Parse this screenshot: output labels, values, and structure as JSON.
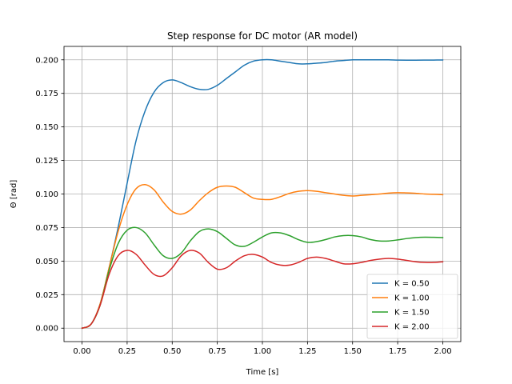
{
  "chart_data": {
    "type": "line",
    "title": "Step response for DC motor (AR model)",
    "xlabel": "Time [s]",
    "ylabel": "Θ [rad]",
    "xlim": [
      -0.1,
      2.1
    ],
    "ylim": [
      -0.01,
      0.21
    ],
    "xticks": [
      0.0,
      0.25,
      0.5,
      0.75,
      1.0,
      1.25,
      1.5,
      1.75,
      2.0
    ],
    "xtick_labels": [
      "0.00",
      "0.25",
      "0.50",
      "0.75",
      "1.00",
      "1.25",
      "1.50",
      "1.75",
      "2.00"
    ],
    "yticks": [
      0.0,
      0.025,
      0.05,
      0.075,
      0.1,
      0.125,
      0.15,
      0.175,
      0.2
    ],
    "ytick_labels": [
      "0.000",
      "0.025",
      "0.050",
      "0.075",
      "0.100",
      "0.125",
      "0.150",
      "0.175",
      "0.200"
    ],
    "grid": true,
    "legend_position": "lower-right",
    "series": [
      {
        "name": "K = 0.50",
        "color": "#1f77b4",
        "x": [
          0,
          0.05,
          0.1,
          0.15,
          0.2,
          0.25,
          0.3,
          0.35,
          0.4,
          0.45,
          0.5,
          0.55,
          0.6,
          0.65,
          0.7,
          0.75,
          0.8,
          0.85,
          0.9,
          0.95,
          1.0,
          1.05,
          1.1,
          1.15,
          1.2,
          1.25,
          1.3,
          1.35,
          1.4,
          1.45,
          1.5,
          1.55,
          1.6,
          1.65,
          1.7,
          1.75,
          1.8,
          1.85,
          1.9,
          1.95,
          2.0
        ],
        "y": [
          0,
          0.003,
          0.018,
          0.045,
          0.075,
          0.108,
          0.14,
          0.162,
          0.176,
          0.183,
          0.185,
          0.183,
          0.18,
          0.178,
          0.178,
          0.181,
          0.186,
          0.191,
          0.196,
          0.199,
          0.2,
          0.2,
          0.199,
          0.198,
          0.197,
          0.197,
          0.1975,
          0.198,
          0.199,
          0.1995,
          0.2,
          0.2,
          0.2,
          0.2,
          0.2,
          0.1998,
          0.1997,
          0.1997,
          0.1998,
          0.1998,
          0.1999
        ]
      },
      {
        "name": "K = 1.00",
        "color": "#ff7f0e",
        "x": [
          0,
          0.05,
          0.1,
          0.15,
          0.2,
          0.25,
          0.3,
          0.35,
          0.4,
          0.45,
          0.5,
          0.55,
          0.6,
          0.65,
          0.7,
          0.75,
          0.8,
          0.85,
          0.9,
          0.95,
          1.0,
          1.05,
          1.1,
          1.15,
          1.2,
          1.25,
          1.3,
          1.35,
          1.4,
          1.45,
          1.5,
          1.55,
          1.6,
          1.65,
          1.7,
          1.75,
          1.8,
          1.85,
          1.9,
          1.95,
          2.0
        ],
        "y": [
          0,
          0.003,
          0.018,
          0.045,
          0.072,
          0.092,
          0.104,
          0.107,
          0.103,
          0.094,
          0.087,
          0.085,
          0.088,
          0.095,
          0.101,
          0.105,
          0.106,
          0.105,
          0.101,
          0.097,
          0.096,
          0.096,
          0.098,
          0.1005,
          0.102,
          0.1025,
          0.102,
          0.101,
          0.1,
          0.099,
          0.0985,
          0.099,
          0.0995,
          0.1,
          0.1007,
          0.101,
          0.1008,
          0.1005,
          0.1,
          0.0998,
          0.0995
        ]
      },
      {
        "name": "K = 1.50",
        "color": "#2ca02c",
        "x": [
          0,
          0.05,
          0.1,
          0.15,
          0.2,
          0.25,
          0.3,
          0.35,
          0.4,
          0.45,
          0.5,
          0.55,
          0.6,
          0.65,
          0.7,
          0.75,
          0.8,
          0.85,
          0.9,
          0.95,
          1.0,
          1.05,
          1.1,
          1.15,
          1.2,
          1.25,
          1.3,
          1.35,
          1.4,
          1.45,
          1.5,
          1.55,
          1.6,
          1.65,
          1.7,
          1.75,
          1.8,
          1.85,
          1.9,
          1.95,
          2.0
        ],
        "y": [
          0,
          0.003,
          0.017,
          0.043,
          0.063,
          0.073,
          0.075,
          0.071,
          0.062,
          0.054,
          0.052,
          0.056,
          0.065,
          0.072,
          0.074,
          0.072,
          0.067,
          0.062,
          0.061,
          0.064,
          0.068,
          0.071,
          0.071,
          0.069,
          0.066,
          0.064,
          0.0645,
          0.066,
          0.068,
          0.069,
          0.069,
          0.068,
          0.066,
          0.065,
          0.065,
          0.0658,
          0.0668,
          0.0675,
          0.0678,
          0.0677,
          0.0675
        ]
      },
      {
        "name": "K = 2.00",
        "color": "#d62728",
        "x": [
          0,
          0.05,
          0.1,
          0.15,
          0.2,
          0.25,
          0.3,
          0.35,
          0.4,
          0.45,
          0.5,
          0.55,
          0.6,
          0.65,
          0.7,
          0.75,
          0.8,
          0.85,
          0.9,
          0.95,
          1.0,
          1.05,
          1.1,
          1.15,
          1.2,
          1.25,
          1.3,
          1.35,
          1.4,
          1.45,
          1.5,
          1.55,
          1.6,
          1.65,
          1.7,
          1.75,
          1.8,
          1.85,
          1.9,
          1.95,
          2.0
        ],
        "y": [
          0,
          0.003,
          0.017,
          0.04,
          0.054,
          0.058,
          0.055,
          0.047,
          0.04,
          0.039,
          0.045,
          0.054,
          0.058,
          0.056,
          0.049,
          0.044,
          0.045,
          0.05,
          0.054,
          0.055,
          0.053,
          0.049,
          0.047,
          0.047,
          0.049,
          0.052,
          0.053,
          0.052,
          0.05,
          0.048,
          0.048,
          0.049,
          0.0505,
          0.0515,
          0.052,
          0.0515,
          0.0505,
          0.0495,
          0.049,
          0.049,
          0.0495
        ]
      }
    ]
  }
}
